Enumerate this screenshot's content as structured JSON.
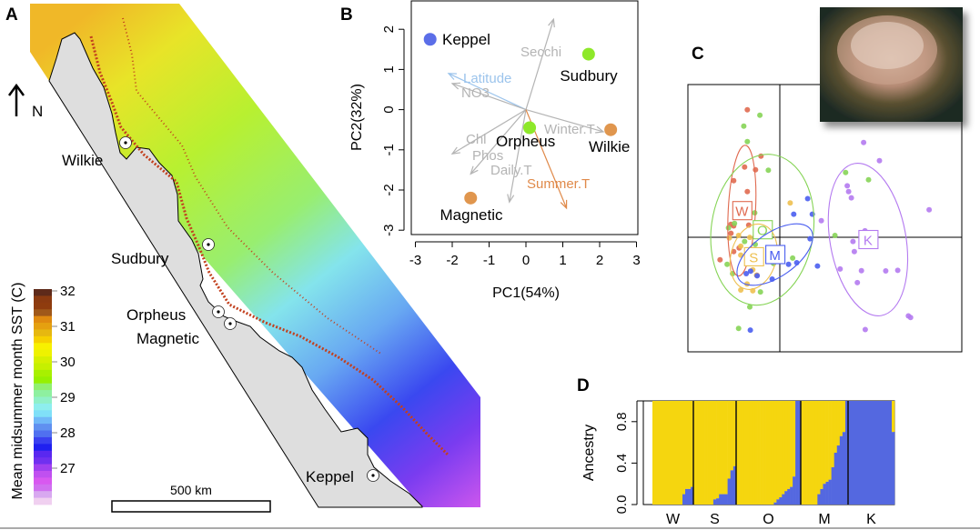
{
  "panels": {
    "a": "A",
    "b": "B",
    "c": "C",
    "d": "D"
  },
  "map": {
    "north_label": "N",
    "scale_label": "500 km",
    "sites": [
      "Wilkie",
      "Sudbury",
      "Orpheus",
      "Magnetic",
      "Keppel"
    ],
    "colorbar": {
      "label": "Mean midsummer month SST (C)",
      "ticks": [
        "32",
        "31",
        "30",
        "29",
        "28",
        "27"
      ],
      "colors": [
        "#5e2a1a",
        "#8b3a10",
        "#8f3c0e",
        "#a0581a",
        "#e08a10",
        "#e5a010",
        "#e6b810",
        "#f6d000",
        "#f8f000",
        "#eef200",
        "#d6f000",
        "#c6f000",
        "#a8f000",
        "#96f000",
        "#90f070",
        "#8ef0a0",
        "#90f0c8",
        "#8eeeee",
        "#80e0f8",
        "#70b8f8",
        "#6090f0",
        "#5070f0",
        "#3a40f0",
        "#2020f0",
        "#5a28f0",
        "#7030f0",
        "#a040f0",
        "#c050f0",
        "#d858f0",
        "#d070f0",
        "#d8a8f0",
        "#f0d0f0"
      ]
    }
  },
  "chart_data": [
    {
      "panel": "B",
      "type": "scatter",
      "xlabel": "PC1(54%)",
      "ylabel": "PC2(32%)",
      "xlim": [
        -3,
        3
      ],
      "ylim": [
        -3,
        2.5
      ],
      "xticks": [
        "-3",
        "-2",
        "-1",
        "0",
        "1",
        "2",
        "3"
      ],
      "yticks": [
        "2",
        "1",
        "0",
        "-1",
        "-2",
        "-3"
      ],
      "points": [
        {
          "label": "Keppel",
          "x": -2.6,
          "y": 1.75,
          "color": "#5b6ee8"
        },
        {
          "label": "Sudbury",
          "x": 1.7,
          "y": 1.38,
          "color": "#8ee82a"
        },
        {
          "label": "Orpheus",
          "x": 0.1,
          "y": -0.45,
          "color": "#8ee82a"
        },
        {
          "label": "Wilkie",
          "x": 2.3,
          "y": -0.5,
          "color": "#e0964e"
        },
        {
          "label": "Magnetic",
          "x": -1.5,
          "y": -2.2,
          "color": "#e0964e"
        }
      ],
      "vectors": [
        {
          "label": "Secchi",
          "x": 0.75,
          "y": 2.25,
          "color": "#b4b4b4"
        },
        {
          "label": "Latitude",
          "x": -2.1,
          "y": 0.9,
          "color": "#9cc4ec"
        },
        {
          "label": "NO3",
          "x": -2.0,
          "y": 0.65,
          "color": "#b4b4b4"
        },
        {
          "label": "Winter.T",
          "x": 2.1,
          "y": -0.55,
          "color": "#b4b4b4"
        },
        {
          "label": "Chl",
          "x": -2.0,
          "y": -1.1,
          "color": "#b4b4b4"
        },
        {
          "label": "Phos",
          "x": -1.5,
          "y": -1.6,
          "color": "#b4b4b4"
        },
        {
          "label": "Daily.T",
          "x": -0.45,
          "y": -2.3,
          "color": "#b4b4b4"
        },
        {
          "label": "Summer.T",
          "x": 1.1,
          "y": -2.45,
          "color": "#e08a4a"
        }
      ]
    },
    {
      "panel": "C",
      "type": "scatter",
      "groups": [
        {
          "label": "W",
          "color": "#e06a50",
          "center": [
            -1.4,
            1.0
          ],
          "ellipse": [
            0.5,
            2.4,
            3
          ],
          "points": [
            [
              -1.2,
              4.7
            ],
            [
              -0.7,
              3.0
            ],
            [
              -1.3,
              2.6
            ],
            [
              -0.9,
              2.5
            ],
            [
              -1.7,
              2.1
            ],
            [
              -1.2,
              1.7
            ],
            [
              -1.8,
              0.5
            ],
            [
              -1.7,
              0.44
            ],
            [
              -1.15,
              0.47
            ],
            [
              -1.8,
              0.17
            ],
            [
              -2.2,
              -0.8
            ],
            [
              -1.7,
              -0.5
            ],
            [
              -1.5,
              -0.37
            ],
            [
              -0.85,
              -1.37
            ]
          ]
        },
        {
          "label": "O",
          "color": "#86d456",
          "center": [
            -0.65,
            0.3
          ],
          "ellipse": [
            1.87,
            2.78,
            8
          ],
          "points": [
            [
              -0.74,
              4.5
            ],
            [
              -1.33,
              4.1
            ],
            [
              -1.2,
              3.53
            ],
            [
              -0.43,
              2.48
            ],
            [
              -0.93,
              0.92
            ],
            [
              -1.67,
              0.53
            ],
            [
              -1.89,
              0.37
            ],
            [
              -0.91,
              -0.24
            ],
            [
              -1.3,
              -0.13
            ],
            [
              -1.94,
              -0.97
            ],
            [
              -1.74,
              -1.31
            ],
            [
              -0.24,
              -0.94
            ],
            [
              0.46,
              -0.74
            ],
            [
              -0.72,
              -1.98
            ],
            [
              -1.11,
              -2.53
            ],
            [
              -1.52,
              -3.32
            ],
            [
              2.4,
              2.4
            ],
            [
              3.24,
              2.13
            ],
            [
              2.01,
              0.09
            ]
          ]
        },
        {
          "label": "S",
          "color": "#eec050",
          "center": [
            -0.97,
            -0.69
          ],
          "ellipse": [
            0.83,
            1.22,
            15
          ],
          "points": [
            [
              0.37,
              1.28
            ],
            [
              -1.86,
              0
            ],
            [
              -1.52,
              0.09
            ],
            [
              -1.11,
              0.02
            ],
            [
              -1.44,
              -0.3
            ],
            [
              -1.44,
              -0.63
            ],
            [
              -1.0,
              -1.17
            ],
            [
              -1.21,
              -1.69
            ],
            [
              -1.44,
              -1.91
            ],
            [
              -1.0,
              -1.94
            ],
            [
              -0.86,
              -1.37
            ]
          ]
        },
        {
          "label": "M",
          "color": "#4a5ef0",
          "center": [
            -0.19,
            -0.61
          ],
          "ellipse": [
            1.6,
            0.8,
            -35
          ],
          "points": [
            [
              1.01,
              1.44
            ],
            [
              0.5,
              0.87
            ],
            [
              1.18,
              0.87
            ],
            [
              1.1,
              -0.03
            ],
            [
              0.31,
              -0.97
            ],
            [
              0.61,
              -0.91
            ],
            [
              -0.29,
              -1.51
            ],
            [
              -0.84,
              -1.39
            ],
            [
              -1.24,
              -1.31
            ],
            [
              -1.08,
              -1.22
            ],
            [
              1.37,
              -1.03
            ],
            [
              -1.09,
              -3.38
            ]
          ]
        },
        {
          "label": "K",
          "color": "#b47af0",
          "center": [
            3.22,
            -0.06
          ],
          "ellipse": [
            1.39,
            2.83,
            -10
          ],
          "points": [
            [
              3.06,
              3.5
            ],
            [
              3.64,
              2.83
            ],
            [
              2.46,
              1.91
            ],
            [
              2.51,
              1.7
            ],
            [
              2.61,
              1.47
            ],
            [
              5.46,
              1.03
            ],
            [
              1.51,
              0.63
            ],
            [
              3.11,
              0.26
            ],
            [
              2.67,
              -0.13
            ],
            [
              2.72,
              -0.5
            ],
            [
              2.2,
              -1.14
            ],
            [
              2.98,
              -1.2
            ],
            [
              3.87,
              -1.21
            ],
            [
              4.31,
              -1.19
            ],
            [
              2.83,
              -1.64
            ],
            [
              4.7,
              -2.86
            ],
            [
              4.78,
              -2.92
            ],
            [
              3.12,
              -3.36
            ]
          ]
        }
      ]
    },
    {
      "panel": "D",
      "type": "bar",
      "ylabel": "Ancestry",
      "ylim": [
        0,
        1
      ],
      "yticks": [
        "0.0",
        "0.4",
        "0.8"
      ],
      "colors": {
        "cluster1": "#f5d60f",
        "cluster2": "#5468e0"
      },
      "groups": [
        {
          "label": "W",
          "cluster2": [
            0,
            0,
            0,
            0,
            0,
            0,
            0,
            0,
            0,
            0,
            0,
            0.1,
            0.15,
            0.15,
            0.17
          ]
        },
        {
          "label": "S",
          "cluster2": [
            0,
            0,
            0,
            0,
            0,
            0,
            0,
            0.05,
            0.06,
            0.1,
            0.1,
            0.1,
            0.25,
            0.33,
            0.37
          ]
        },
        {
          "label": "O",
          "cluster2": [
            0,
            0,
            0,
            0,
            0,
            0,
            0,
            0,
            0,
            0,
            0,
            0,
            0,
            0,
            0.02,
            0.05,
            0.07,
            0.1,
            0.13,
            0.15,
            0.17,
            0.27,
            1,
            1
          ]
        },
        {
          "label": "M",
          "cluster2": [
            0,
            0,
            0,
            0,
            0,
            0,
            0.1,
            0.15,
            0.2,
            0.22,
            0.24,
            0.36,
            0.5,
            0.57,
            0.66,
            0.7,
            1
          ]
        },
        {
          "label": "K",
          "cluster2": [
            1,
            1,
            1,
            1,
            1,
            1,
            1,
            1,
            1,
            1,
            1,
            1,
            1,
            1,
            1,
            1,
            0.7
          ]
        }
      ]
    }
  ]
}
